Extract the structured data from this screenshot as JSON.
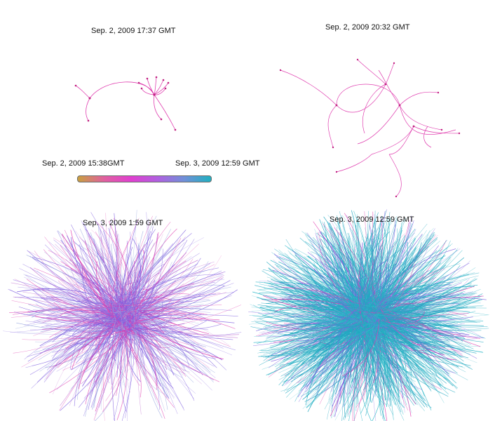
{
  "panels": [
    {
      "id": "tl",
      "timestamp": "Sep. 2, 2009 17:37 GMT"
    },
    {
      "id": "tr",
      "timestamp": "Sep. 2, 2009 20:32 GMT"
    },
    {
      "id": "bl",
      "timestamp": "Sep. 3, 2009 1:59 GMT"
    },
    {
      "id": "br",
      "timestamp": "Sep. 3, 2009 12:59 GMT"
    }
  ],
  "legend": {
    "start_label": "Sep. 2, 2009 15:38GMT",
    "end_label": "Sep. 3, 2009 12:59 GMT",
    "gradient_colors": [
      "#c8a040",
      "#e060a0",
      "#e040d0",
      "#b060e0",
      "#7090d8",
      "#20b0c0"
    ]
  },
  "colors": {
    "early": "#e040b0",
    "mid": "#8060e0",
    "late": "#20a8c0",
    "node": "#c02080"
  }
}
